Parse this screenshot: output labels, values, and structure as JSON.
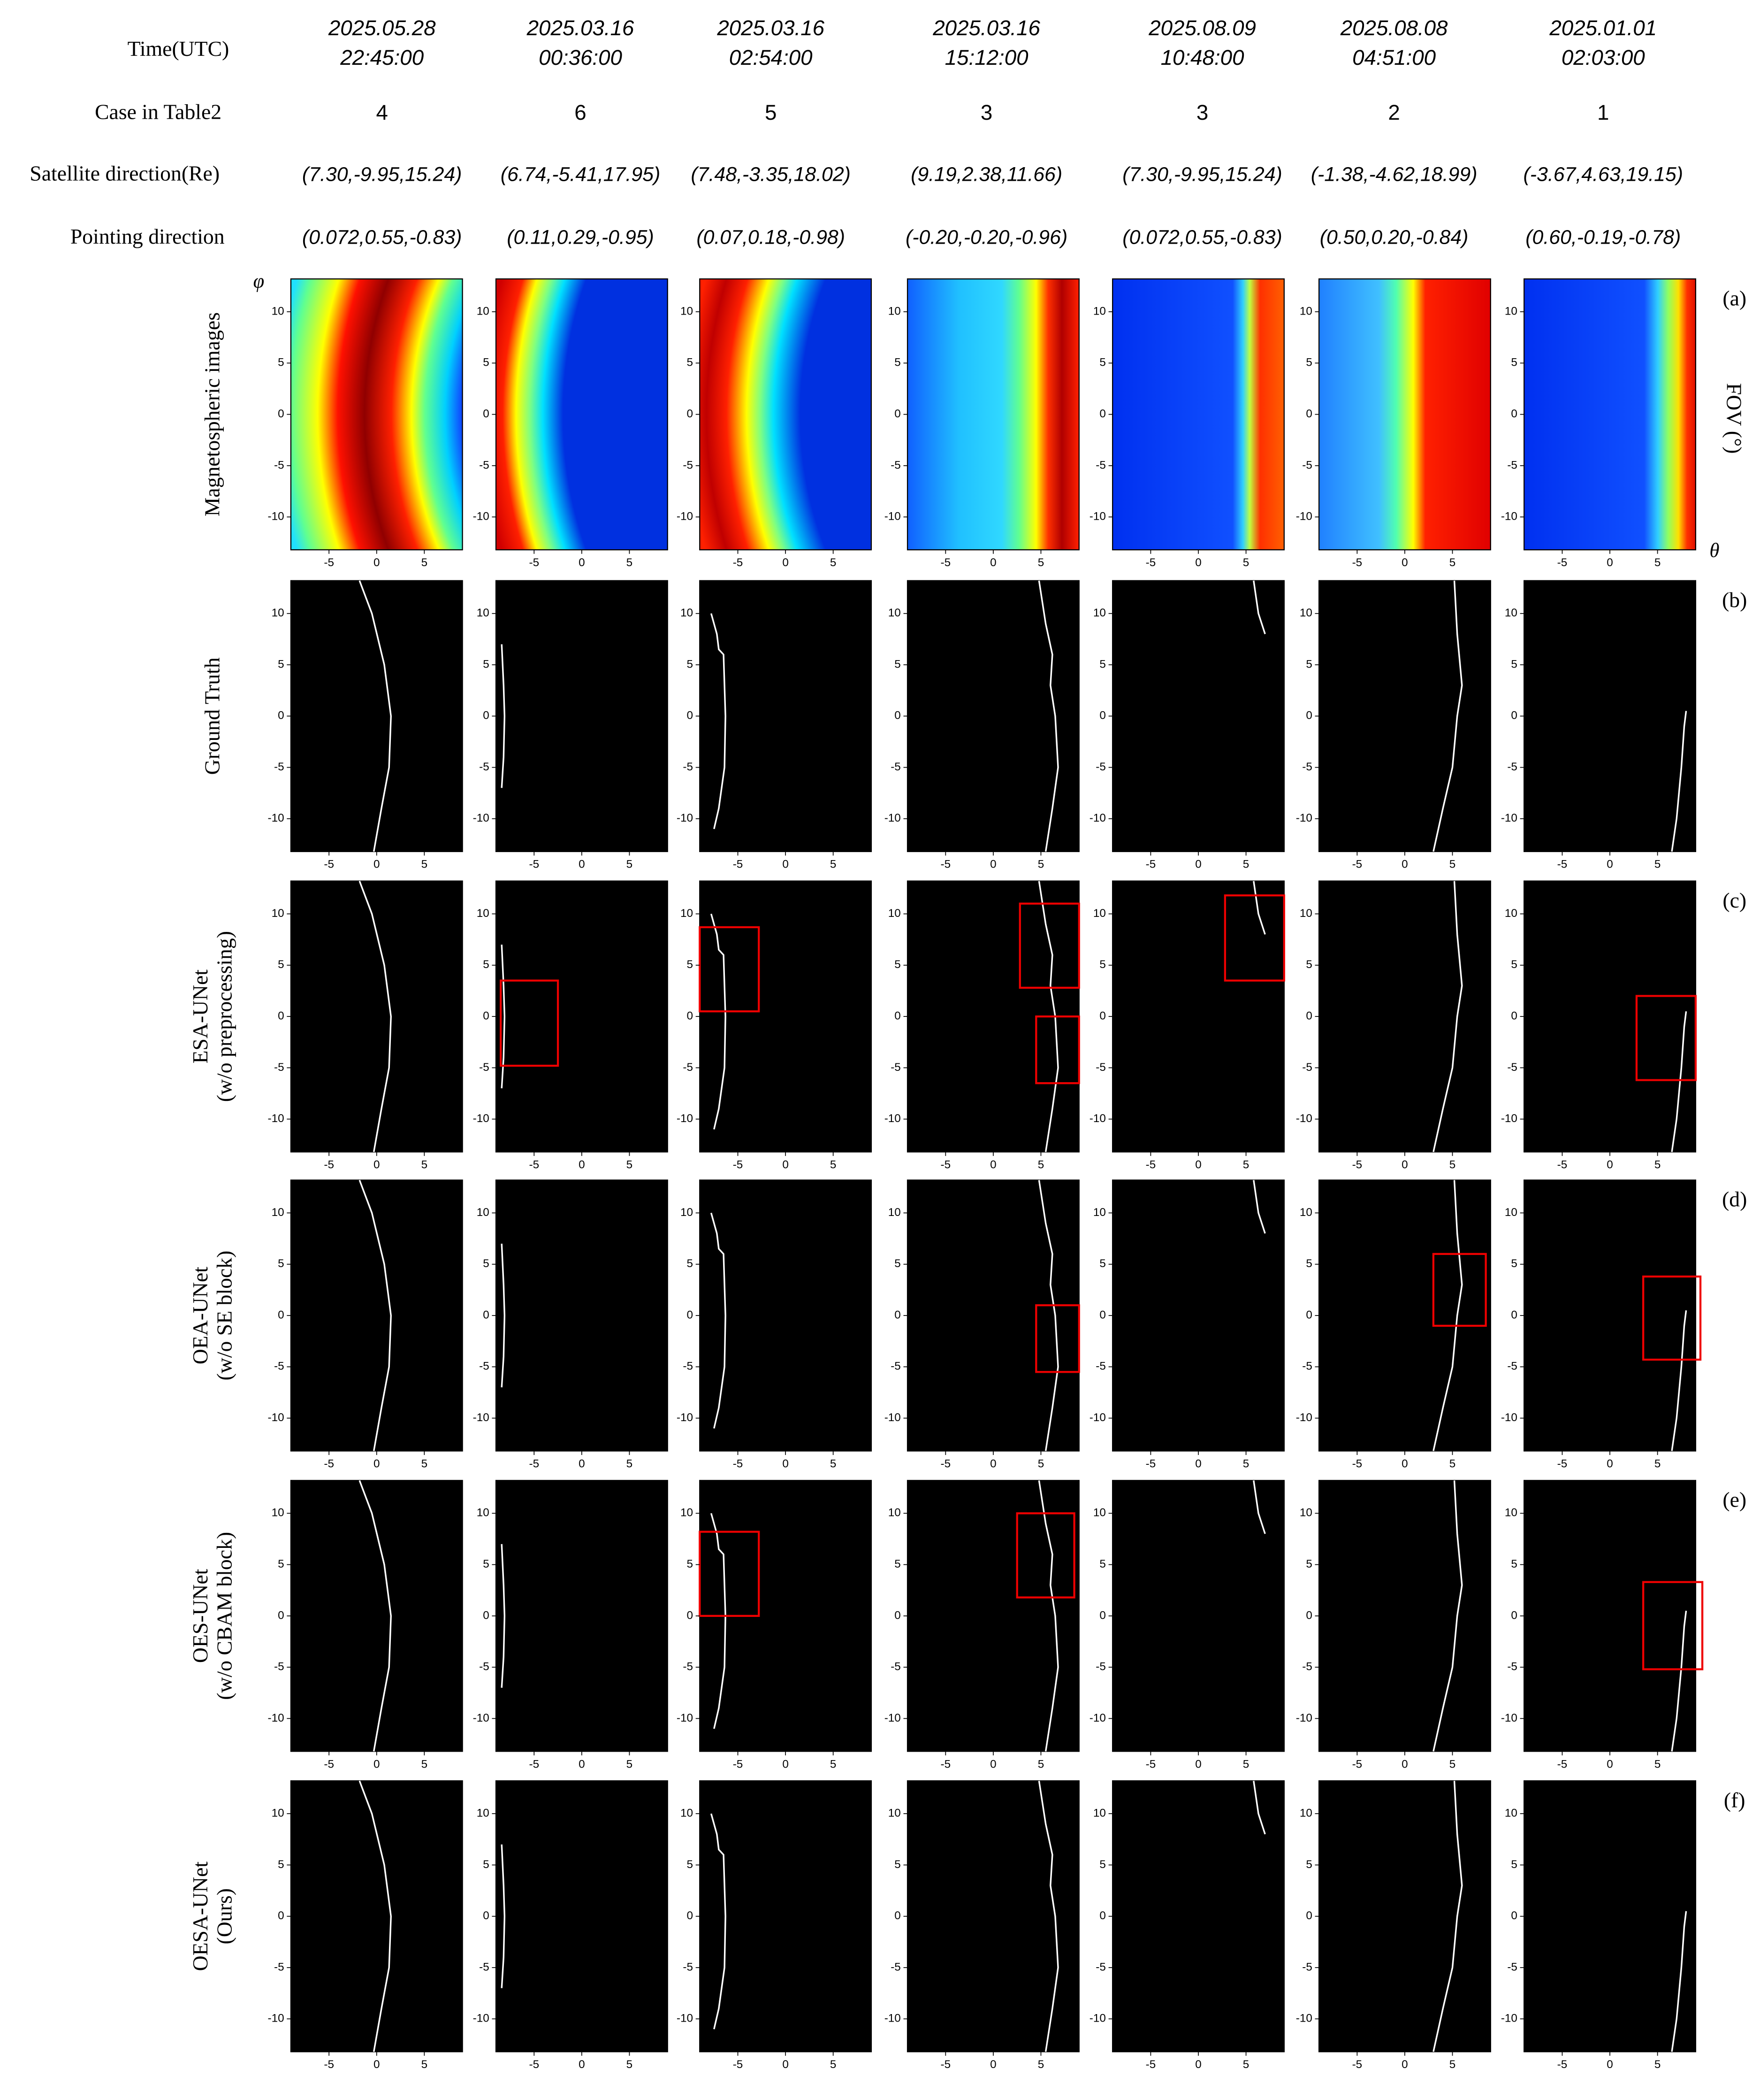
{
  "header": {
    "row_labels": [
      "Time(UTC)",
      "Case in Table2",
      "Satellite direction(Re)",
      "Pointing direction"
    ]
  },
  "columns": [
    {
      "time": [
        "2025.05.28",
        "22:45:00"
      ],
      "case": 4,
      "satellite_direction": "(7.30,-9.95,15.24)",
      "pointing_direction": "(0.072,0.55,-0.83)"
    },
    {
      "time": [
        "2025.03.16",
        "00:36:00"
      ],
      "case": 6,
      "satellite_direction": "(6.74,-5.41,17.95)",
      "pointing_direction": "(0.11,0.29,-0.95)"
    },
    {
      "time": [
        "2025.03.16",
        "02:54:00"
      ],
      "case": 5,
      "satellite_direction": "(7.48,-3.35,18.02)",
      "pointing_direction": "(0.07,0.18,-0.98)"
    },
    {
      "time": [
        "2025.03.16",
        "15:12:00"
      ],
      "case": 3,
      "satellite_direction": "(9.19,2.38,11.66)",
      "pointing_direction": "(-0.20,-0.20,-0.96)"
    },
    {
      "time": [
        "2025.08.09",
        "10:48:00"
      ],
      "case": 3,
      "satellite_direction": "(7.30,-9.95,15.24)",
      "pointing_direction": "(0.072,0.55,-0.83)"
    },
    {
      "time": [
        "2025.08.08",
        "04:51:00"
      ],
      "case": 2,
      "satellite_direction": "(-1.38,-4.62,18.99)",
      "pointing_direction": "(0.50,0.20,-0.84)"
    },
    {
      "time": [
        "2025.01.01",
        "02:03:00"
      ],
      "case": 1,
      "satellite_direction": "(-3.67,4.63,19.15)",
      "pointing_direction": "(0.60,-0.19,-0.78)"
    }
  ],
  "rows": [
    {
      "tag": "(a)",
      "label": [
        "Magnetospheric images"
      ]
    },
    {
      "tag": "(b)",
      "label": [
        "Ground Truth"
      ]
    },
    {
      "tag": "(c)",
      "label": [
        "ESA-UNet",
        "(w/o preprocessing)"
      ]
    },
    {
      "tag": "(d)",
      "label": [
        "OEA-UNet",
        "(w/o SE block)"
      ]
    },
    {
      "tag": "(e)",
      "label": [
        "OES-UNet",
        "(w/o CBAM block)"
      ]
    },
    {
      "tag": "(f)",
      "label": [
        "OESA-UNet",
        "(Ours)"
      ]
    }
  ],
  "axes": {
    "x_label": "θ",
    "y_label": "φ",
    "fov_label": "FOV  (°)",
    "xlim": [
      -9,
      9
    ],
    "ylim": [
      -13.2,
      13.2
    ],
    "xticks": [
      -5,
      0,
      5
    ],
    "yticks": [
      10,
      5,
      0,
      -5,
      -10
    ]
  }
}
